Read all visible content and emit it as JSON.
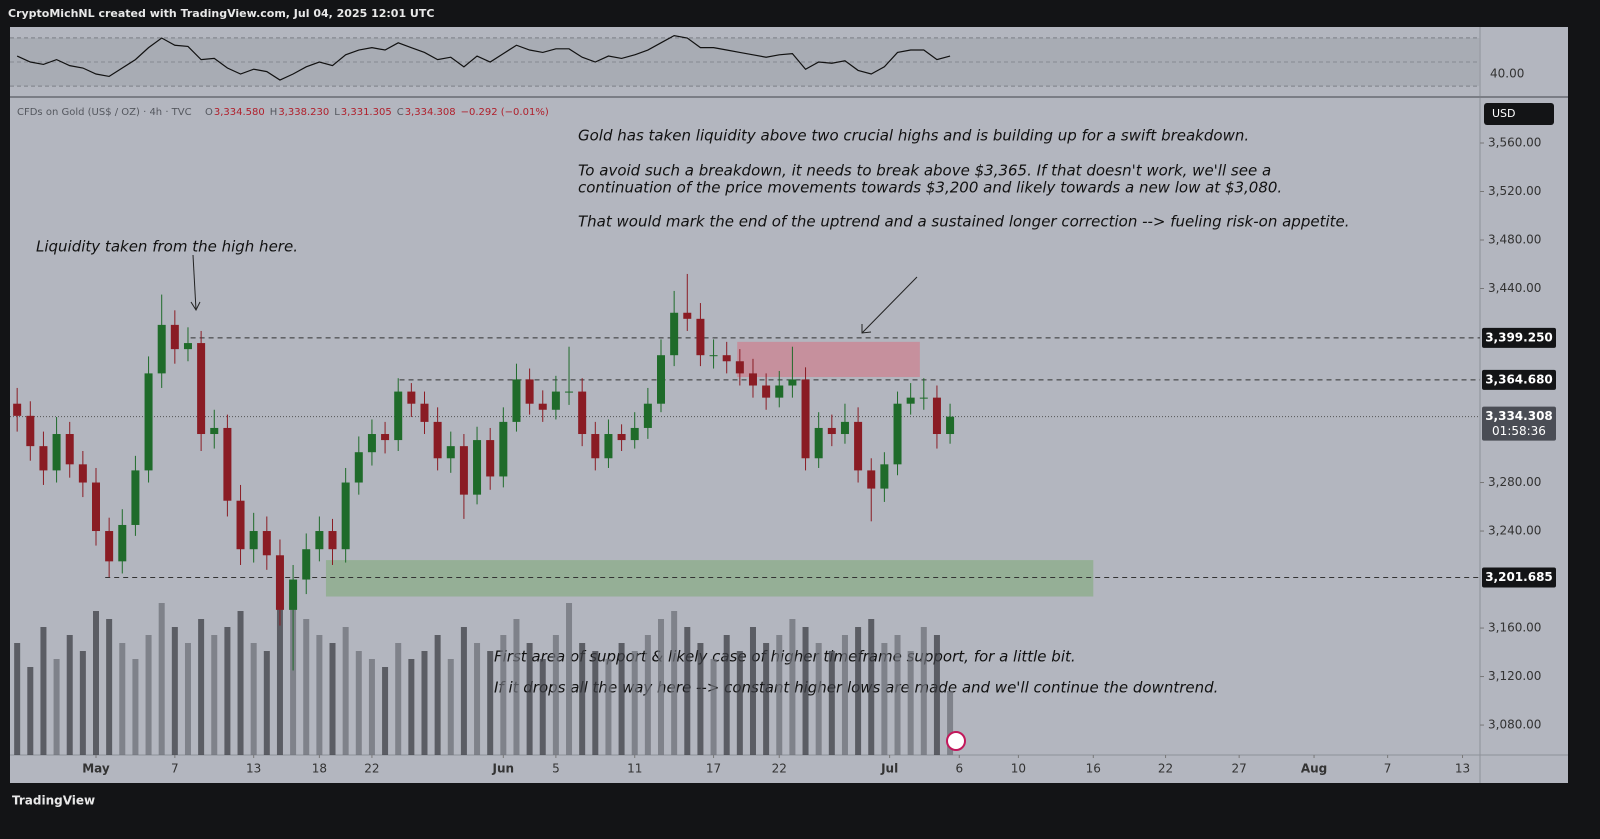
{
  "chart_data": {
    "type": "candlestick",
    "header": "CryptoMichNL created with TradingView.com, Jul 04, 2025 12:01 UTC",
    "symbol": "CFDs on Gold (US$ / OZ) · 4h · TVC",
    "ohlc": [
      {
        "key": "O",
        "text": "3,334.580"
      },
      {
        "key": "H",
        "text": "3,338.230"
      },
      {
        "key": "L",
        "text": "3,331.305"
      },
      {
        "key": "C",
        "text": "3,334.308"
      },
      {
        "key": "",
        "text": "−0.292 (−0.01%)"
      }
    ],
    "currency": "USD",
    "brand": "TradingView",
    "annotations": [
      "Gold has taken liquidity above two crucial highs and is building up for a swift breakdown.",
      "To avoid such a breakdown, it needs to break above $3,365. If that doesn't work, we'll see a",
      "continuation of the price movements towards $3,200 and likely towards a new low at $3,080.",
      "That would mark the end of the uptrend and a sustained longer correction --> fueling risk-on appetite.",
      "Liquidity taken from the high here.",
      "First area of support & likely case of higher timeframe support, for a little bit.",
      "If it drops all the way here --> constant higher lows are made and we'll continue the downtrend."
    ],
    "x": [
      -6,
      -5,
      -4,
      -3,
      -2,
      -1,
      0,
      1,
      2,
      3,
      4,
      5,
      6,
      7,
      8,
      9,
      10,
      11,
      12,
      13,
      14,
      15,
      16,
      17,
      18,
      19,
      20,
      21,
      22,
      23,
      24,
      25,
      26,
      27,
      28,
      29,
      30,
      31,
      32,
      33,
      34,
      35,
      36,
      37,
      38,
      39,
      40,
      41,
      42,
      43,
      44,
      45,
      46,
      47,
      48,
      49,
      50,
      51,
      52,
      53,
      54,
      55,
      56,
      57,
      58,
      59,
      60,
      61,
      62,
      63,
      64,
      65
    ],
    "open": [
      3345,
      3335,
      3310,
      3290,
      3320,
      3295,
      3280,
      3240,
      3215,
      3245,
      3290,
      3370,
      3410,
      3390,
      3395,
      3320,
      3325,
      3265,
      3225,
      3240,
      3220,
      3175,
      3200,
      3225,
      3240,
      3225,
      3280,
      3305,
      3320,
      3315,
      3355,
      3345,
      3330,
      3300,
      3310,
      3270,
      3315,
      3285,
      3330,
      3365,
      3345,
      3340,
      3355,
      3355,
      3320,
      3300,
      3320,
      3315,
      3325,
      3345,
      3385,
      3420,
      3415,
      3385,
      3385,
      3380,
      3370,
      3360,
      3350,
      3360,
      3365,
      3300,
      3325,
      3320,
      3330,
      3290,
      3275,
      3295,
      3345,
      3350,
      3350,
      3320
    ],
    "high": [
      3358,
      3347,
      3322,
      3334,
      3330,
      3306,
      3292,
      3251,
      3258,
      3302,
      3384,
      3435,
      3422,
      3408,
      3405,
      3340,
      3336,
      3278,
      3255,
      3252,
      3233,
      3212,
      3238,
      3252,
      3250,
      3292,
      3318,
      3332,
      3330,
      3366,
      3362,
      3355,
      3342,
      3322,
      3320,
      3326,
      3325,
      3342,
      3378,
      3374,
      3356,
      3368,
      3392,
      3366,
      3330,
      3332,
      3328,
      3338,
      3358,
      3398,
      3438,
      3452,
      3428,
      3398,
      3396,
      3390,
      3382,
      3370,
      3372,
      3392,
      3375,
      3338,
      3336,
      3345,
      3342,
      3300,
      3305,
      3355,
      3362,
      3366,
      3360,
      3345
    ],
    "low": [
      3322,
      3298,
      3278,
      3280,
      3284,
      3268,
      3228,
      3202,
      3205,
      3236,
      3280,
      3358,
      3378,
      3380,
      3306,
      3308,
      3252,
      3212,
      3214,
      3208,
      3162,
      3125,
      3188,
      3215,
      3212,
      3214,
      3270,
      3294,
      3304,
      3306,
      3334,
      3320,
      3290,
      3288,
      3250,
      3262,
      3274,
      3276,
      3322,
      3336,
      3330,
      3332,
      3344,
      3310,
      3290,
      3292,
      3306,
      3308,
      3316,
      3338,
      3376,
      3405,
      3376,
      3374,
      3370,
      3360,
      3350,
      3340,
      3342,
      3350,
      3290,
      3292,
      3310,
      3312,
      3280,
      3248,
      3264,
      3286,
      3336,
      3340,
      3308,
      3312
    ],
    "close": [
      3335,
      3310,
      3290,
      3320,
      3295,
      3280,
      3240,
      3215,
      3245,
      3290,
      3370,
      3410,
      3390,
      3395,
      3320,
      3325,
      3265,
      3225,
      3240,
      3220,
      3175,
      3200,
      3225,
      3240,
      3225,
      3280,
      3305,
      3320,
      3315,
      3355,
      3345,
      3330,
      3300,
      3310,
      3270,
      3315,
      3285,
      3330,
      3365,
      3345,
      3340,
      3355,
      3355,
      3320,
      3300,
      3320,
      3315,
      3325,
      3345,
      3385,
      3420,
      3415,
      3385,
      3385,
      3380,
      3370,
      3360,
      3350,
      3360,
      3365,
      3300,
      3325,
      3320,
      3330,
      3290,
      3275,
      3295,
      3345,
      3350,
      3350,
      3320,
      3334.308
    ],
    "volume": [
      70,
      55,
      80,
      60,
      75,
      65,
      90,
      85,
      70,
      60,
      75,
      95,
      80,
      70,
      85,
      75,
      80,
      90,
      70,
      65,
      95,
      100,
      85,
      75,
      70,
      80,
      65,
      60,
      55,
      70,
      60,
      65,
      75,
      60,
      80,
      70,
      65,
      75,
      85,
      70,
      60,
      75,
      95,
      70,
      65,
      60,
      70,
      65,
      75,
      85,
      90,
      80,
      70,
      60,
      75,
      65,
      80,
      70,
      75,
      85,
      80,
      70,
      65,
      75,
      80,
      85,
      70,
      75,
      65,
      80,
      75,
      40
    ],
    "rsi": [
      55,
      50,
      48,
      52,
      47,
      45,
      40,
      38,
      45,
      52,
      62,
      70,
      64,
      63,
      52,
      53,
      45,
      40,
      44,
      42,
      35,
      40,
      46,
      50,
      47,
      56,
      60,
      62,
      60,
      66,
      62,
      58,
      52,
      54,
      46,
      55,
      50,
      57,
      64,
      60,
      58,
      61,
      61,
      54,
      50,
      55,
      53,
      56,
      60,
      66,
      72,
      70,
      62,
      62,
      60,
      58,
      56,
      54,
      56,
      57,
      44,
      50,
      49,
      51,
      43,
      40,
      46,
      58,
      60,
      60,
      52,
      55
    ],
    "rsi_ylim": [
      22.5,
      79.2
    ],
    "rsi_yticks": [
      {
        "value": 40,
        "label": "40.00"
      }
    ],
    "rsi_bands": [
      30,
      50,
      70
    ],
    "up_color": "#1f6b2a",
    "down_color": "#8a1c24",
    "xlim": [
      -6.545,
      105.33
    ],
    "ylim": [
      3055.3,
      3597.1
    ],
    "xticks": [
      {
        "value": 0,
        "label": "May"
      },
      {
        "value": 6,
        "label": "7"
      },
      {
        "value": 12,
        "label": "13"
      },
      {
        "value": 17,
        "label": "18"
      },
      {
        "value": 21,
        "label": "22"
      },
      {
        "value": 31,
        "label": "Jun"
      },
      {
        "value": 35,
        "label": "5"
      },
      {
        "value": 41,
        "label": "11"
      },
      {
        "value": 47,
        "label": "17"
      },
      {
        "value": 52,
        "label": "22"
      },
      {
        "value": 60.4,
        "label": "Jul"
      },
      {
        "value": 65.7,
        "label": "6"
      },
      {
        "value": 70.2,
        "label": "10"
      },
      {
        "value": 75.9,
        "label": "16"
      },
      {
        "value": 81.4,
        "label": "22"
      },
      {
        "value": 87,
        "label": "27"
      },
      {
        "value": 92.7,
        "label": "Aug"
      },
      {
        "value": 98.3,
        "label": "7"
      },
      {
        "value": 104,
        "label": "13"
      }
    ],
    "yticks": [
      {
        "value": 3080,
        "label": "3,080.00"
      },
      {
        "value": 3120,
        "label": "3,120.00"
      },
      {
        "value": 3160,
        "label": "3,160.00"
      },
      {
        "value": 3240,
        "label": "3,240.00"
      },
      {
        "value": 3280,
        "label": "3,280.00"
      },
      {
        "value": 3440,
        "label": "3,440.00"
      },
      {
        "value": 3480,
        "label": "3,480.00"
      },
      {
        "value": 3520,
        "label": "3,520.00"
      },
      {
        "value": 3560,
        "label": "3,560.00"
      }
    ],
    "price_lines": [
      {
        "value": 3399.25,
        "label": "3,399.250",
        "from": 7.2
      },
      {
        "value": 3364.68,
        "label": "3,364.680",
        "from": 23.1
      },
      {
        "value": 3201.685,
        "label": "3,201.685",
        "from": 0.7
      }
    ],
    "last_price": {
      "value": 3334.308,
      "label": "3,334.308",
      "countdown": "01:58:36"
    },
    "zones": [
      {
        "x": [
          48.8,
          62.7
        ],
        "y": [
          3367,
          3396
        ],
        "color": "#c98a96"
      },
      {
        "x": [
          17.5,
          75.9
        ],
        "y": [
          3186,
          3216
        ],
        "color": "#8fae8e"
      }
    ]
  }
}
